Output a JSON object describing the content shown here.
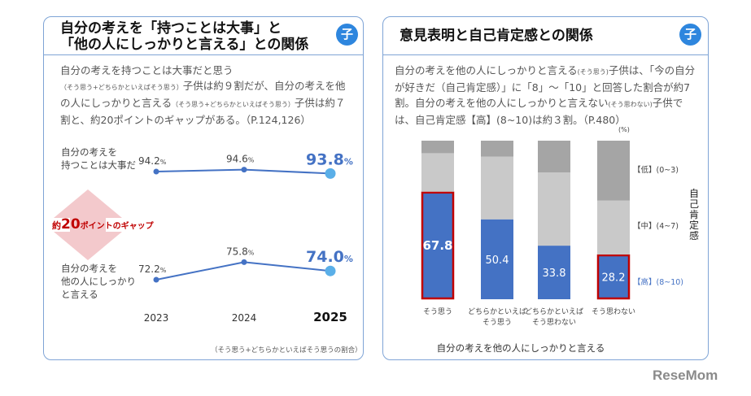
{
  "left": {
    "title_line1": "自分の考えを「持つことは大事」と",
    "title_line2": "「他の人にしっかりと言える」との関係",
    "badge": "子",
    "desc": [
      {
        "t": "自分の考えを持つことは大事だと思う"
      },
      {
        "s": "（そう思う+どちらかといえばそう思う）"
      },
      {
        "t": "子供は約９割だが、自分の考えを他の人にしっかりと言える"
      },
      {
        "s": "（そう思う+どちらかといえばそう思う）"
      },
      {
        "t": "子供は約７割と、約20ポイントのギャップがある。（P.124,126）"
      }
    ],
    "gap_label_pre": "約",
    "gap_label_num": "20",
    "gap_label_post": "ポイントのギャップ",
    "note": "（そう思う+どちらかといえばそう思うの割合）"
  },
  "right": {
    "title": "意見表明と自己肯定感との関係",
    "badge": "子",
    "desc_parts": [
      {
        "t": "自分の考えを他の人にしっかりと言える"
      },
      {
        "s": "(そう思う)"
      },
      {
        "t": "子供は、「今の自分が好きだ（自己肯定感）」に「8」～「10」と回答した割合が約7割。自分の考えを他の人にしっかりと言えない"
      },
      {
        "s": "(そう思わない)"
      },
      {
        "t": "子供では、自己肯定感【高】(8~10)は約３割。（P.480）"
      }
    ]
  },
  "logo": "ReseMom",
  "chart_data": [
    {
      "type": "line",
      "x": [
        "2023",
        "2024",
        "2025"
      ],
      "series": [
        {
          "name": "自分の考えを持つことは大事だ",
          "values": [
            94.2,
            94.6,
            93.8
          ],
          "labels": [
            "94.2",
            "94.6",
            "93.8"
          ]
        },
        {
          "name": "自分の考えを他の人にしっかりと言える",
          "values": [
            72.2,
            75.8,
            74.0
          ],
          "labels": [
            "72.2",
            "75.8",
            "74.0"
          ]
        }
      ],
      "unit": "%",
      "colors": {
        "line": "#4472c4",
        "highlight": "#5aafe8",
        "label_highlight": "#4472c4"
      }
    },
    {
      "type": "bar",
      "stacked": true,
      "unit": "(%)",
      "categories": [
        [
          "そう思う"
        ],
        [
          "どちらかといえば",
          "そう思う"
        ],
        [
          "どちらかといえば",
          "そう思わない"
        ],
        [
          "そう思わない"
        ]
      ],
      "xlabel": "自分の考えを他の人にしっかりと言える",
      "ylabel": "自己肯定感",
      "series": [
        {
          "name": "【高】(8~10)",
          "values": [
            67.8,
            50.4,
            33.8,
            28.2
          ],
          "color": "#4472c4"
        },
        {
          "name": "【中】(4~7)",
          "values": [
            24.3,
            39.6,
            46.2,
            34.0
          ],
          "color": "#c9c9c9"
        },
        {
          "name": "【低】(0~3)",
          "values": [
            7.9,
            10.0,
            20.0,
            37.8
          ],
          "color": "#a5a5a5"
        }
      ],
      "highlighted": [
        0,
        3
      ],
      "highlight_color": "#c00000",
      "ylim": [
        0,
        100
      ]
    }
  ]
}
